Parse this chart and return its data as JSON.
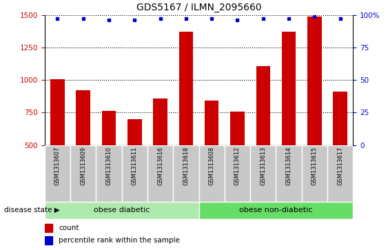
{
  "title": "GDS5167 / ILMN_2095660",
  "samples": [
    "GSM1313607",
    "GSM1313609",
    "GSM1313610",
    "GSM1313611",
    "GSM1313616",
    "GSM1313618",
    "GSM1313608",
    "GSM1313612",
    "GSM1313613",
    "GSM1313614",
    "GSM1313615",
    "GSM1313617"
  ],
  "counts": [
    1005,
    920,
    762,
    700,
    860,
    1370,
    840,
    755,
    1105,
    1370,
    1490,
    910
  ],
  "percentiles": [
    97,
    97,
    96,
    96,
    97,
    97,
    97,
    96,
    97,
    97,
    99,
    97
  ],
  "groups": [
    {
      "label": "obese diabetic",
      "start": 0,
      "end": 6,
      "color": "#aeeaae"
    },
    {
      "label": "obese non-diabetic",
      "start": 6,
      "end": 12,
      "color": "#66dd66"
    }
  ],
  "ylim_left": [
    500,
    1500
  ],
  "ylim_right": [
    0,
    100
  ],
  "yticks_left": [
    500,
    750,
    1000,
    1250,
    1500
  ],
  "yticks_right": [
    0,
    25,
    50,
    75,
    100
  ],
  "bar_color": "#cc0000",
  "dot_color": "#0000cc",
  "bg_color": "#c8c8c8",
  "grid_color": "#000000",
  "left_tick_color": "#cc0000",
  "right_tick_color": "#0000cc",
  "disease_state_label": "disease state",
  "legend_count": "count",
  "legend_percentile": "percentile rank within the sample"
}
